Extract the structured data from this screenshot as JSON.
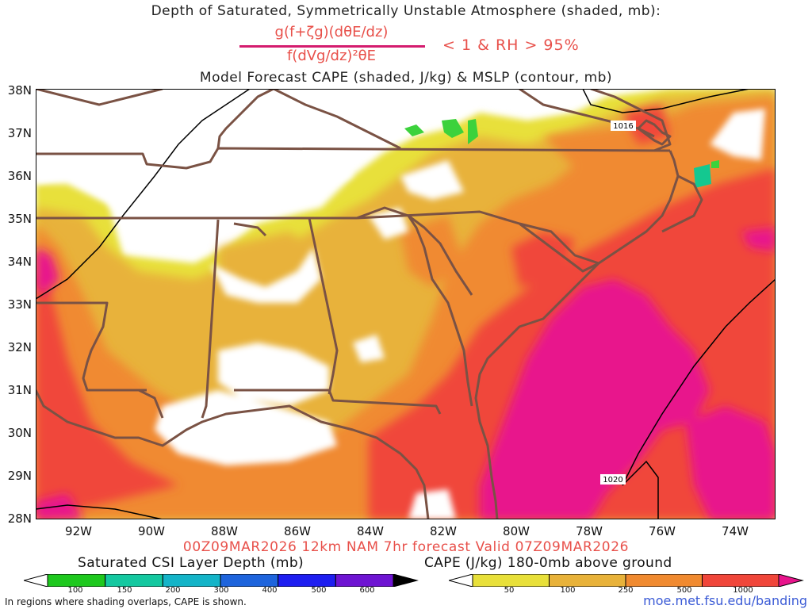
{
  "header": {
    "title_line1": "Depth of Saturated, Symmetrically Unstable Atmosphere (shaded, mb):",
    "fraction_numerator": "g(f+ζg)(dθE/dz)",
    "fraction_denominator": "f(dVg/dz)²θE",
    "condition": "< 1 & RH > 95%",
    "title_line3": "Model Forecast CAPE (shaded, J/kg) & MSLP (contour, mb)"
  },
  "map": {
    "lat_labels": [
      "38N",
      "37N",
      "36N",
      "35N",
      "34N",
      "33N",
      "32N",
      "31N",
      "30N",
      "29N",
      "28N"
    ],
    "lon_labels": [
      "92W",
      "90W",
      "88W",
      "86W",
      "84W",
      "82W",
      "80W",
      "78W",
      "76W",
      "74W"
    ],
    "contour_labels": [
      "1016",
      "1020"
    ],
    "colors": {
      "cape_50": "#e8e03a",
      "cape_100": "#e8b23a",
      "cape_250": "#f08a30",
      "cape_500": "#f0463a",
      "cape_1000": "#e8148c",
      "csi_100": "#3cd23c",
      "csi_150": "#14c890",
      "borders": "#7a5244",
      "contour": "#000000"
    }
  },
  "footer": {
    "run_info": "00Z09MAR2026 12km NAM 7hr forecast Valid 07Z09MAR2026",
    "csi_colorbar_title": "Saturated CSI Layer Depth (mb)",
    "csi_colorbar_labels": [
      "100",
      "150",
      "200",
      "300",
      "400",
      "500",
      "600"
    ],
    "csi_colorbar_colors": [
      "#ffffff",
      "#1ec81e",
      "#14c8a0",
      "#14b4c8",
      "#1e64dc",
      "#1e1ef0",
      "#6e14d2",
      "#000000"
    ],
    "cape_colorbar_title": "CAPE (J/kg) 180-0mb above ground",
    "cape_colorbar_labels": [
      "50",
      "100",
      "250",
      "500",
      "1000"
    ],
    "cape_colorbar_colors": [
      "#ffffff",
      "#e8e03a",
      "#e8b23a",
      "#f08a30",
      "#f0463a",
      "#e8148c"
    ],
    "note": "In regions where shading overlaps, CAPE is shown.",
    "url": "moe.met.fsu.edu/banding"
  }
}
